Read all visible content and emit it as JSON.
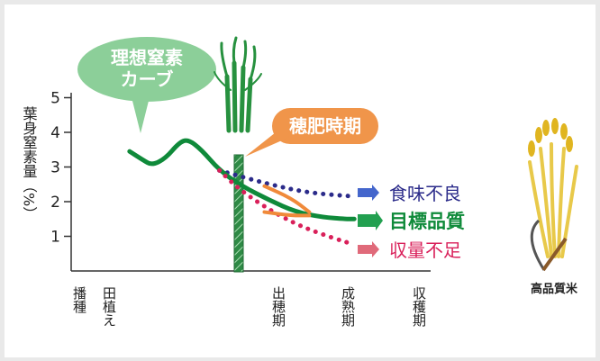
{
  "chart_data": {
    "type": "line",
    "ylabel": "葉身窒素量（%）",
    "yticks": [
      1,
      2,
      3,
      4,
      5
    ],
    "ylim": [
      0,
      5.3
    ],
    "xticks": [
      {
        "id": "sowing",
        "label": "播種"
      },
      {
        "id": "planting",
        "label": "田植え"
      },
      {
        "id": "heading",
        "label": "出穂期"
      },
      {
        "id": "ripening",
        "label": "成熟期"
      },
      {
        "id": "harvest",
        "label": "収穫期"
      }
    ],
    "fertilizer_period_label": "穂肥時期",
    "ideal_curve_label": "理想窒素カーブ",
    "series": [
      {
        "name": "食味不良",
        "color": "#2b2b8a",
        "style": "dotted",
        "points": [
          [
            3.3,
            2.9
          ],
          [
            4.4,
            2.5
          ],
          [
            5.3,
            2.25
          ],
          [
            6.3,
            2.15
          ]
        ]
      },
      {
        "name": "目標品質",
        "color": "#0f8a3a",
        "style": "solid",
        "points": [
          [
            1.3,
            3.45
          ],
          [
            1.6,
            3.2
          ],
          [
            1.8,
            3.05
          ],
          [
            2.1,
            3.25
          ],
          [
            2.4,
            3.7
          ],
          [
            2.6,
            3.8
          ],
          [
            2.9,
            3.5
          ],
          [
            3.3,
            2.9
          ],
          [
            3.8,
            2.45
          ],
          [
            4.4,
            2.05
          ],
          [
            5.0,
            1.7
          ],
          [
            5.6,
            1.55
          ],
          [
            6.1,
            1.5
          ],
          [
            6.3,
            1.5
          ]
        ]
      },
      {
        "name": "収量不足",
        "color": "#d9205a",
        "style": "dotted",
        "points": [
          [
            3.3,
            2.9
          ],
          [
            3.7,
            2.4
          ],
          [
            4.3,
            1.85
          ],
          [
            5.0,
            1.35
          ],
          [
            5.6,
            1.05
          ],
          [
            6.2,
            0.8
          ]
        ]
      },
      {
        "name": "穂肥時期",
        "color": "#f08a3a",
        "style": "solid",
        "points": [
          [
            4.3,
            2.45
          ],
          [
            4.9,
            2.1
          ],
          [
            5.3,
            1.7
          ]
        ]
      },
      {
        "name": "穂肥時期",
        "color": "#f08a3a",
        "style": "solid",
        "points": [
          [
            4.3,
            1.7
          ],
          [
            4.9,
            1.6
          ],
          [
            5.3,
            1.6
          ]
        ]
      }
    ],
    "legend": [
      {
        "label": "食味不良",
        "color": "#2b2b8a",
        "arrow": "#4466cc"
      },
      {
        "label": "目標品質",
        "color": "#0f8a3a",
        "arrow": "#22a050"
      },
      {
        "label": "収量不足",
        "color": "#d9205a",
        "arrow": "#e06a7a"
      }
    ]
  },
  "illustration": {
    "caption": "高品質米"
  }
}
